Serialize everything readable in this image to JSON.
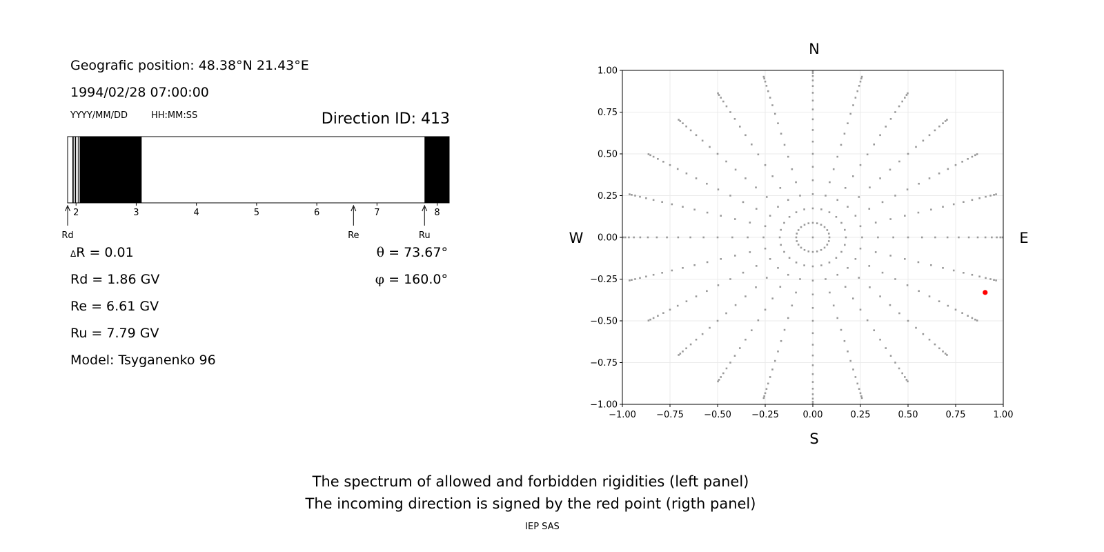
{
  "left_panel": {
    "position": "Geografic position: 48.38°N 21.43°E",
    "datetime": "1994/02/28 07:00:00",
    "date_format": "YYYY/MM/DD",
    "time_format": "HH:MM:SS",
    "direction_id": "Direction ID: 413",
    "delta_r_symbol": "Δ",
    "delta_r": "R = 0.01",
    "rd": "Rd = 1.86 GV",
    "re": "Re = 6.61 GV",
    "ru": "Ru = 7.79 GV",
    "model": "Model: Tsyganenko 96",
    "theta_symbol": "θ",
    "theta": " = 73.67°",
    "phi_symbol": "φ",
    "phi": " = 160.0°",
    "markers": [
      {
        "label": "Rd",
        "value": 1.86
      },
      {
        "label": "Re",
        "value": 6.61
      },
      {
        "label": "Ru",
        "value": 7.79
      }
    ]
  },
  "chart_data": [
    {
      "type": "bar",
      "description_of_content": "rigidity spectrum strip",
      "xlim": [
        1.86,
        8.2
      ],
      "ticks": [
        2,
        3,
        4,
        5,
        6,
        7,
        8
      ],
      "forbidden_intervals": [
        [
          1.94,
          1.96
        ],
        [
          1.98,
          2.0
        ],
        [
          2.03,
          2.04
        ],
        [
          2.06,
          3.09
        ],
        [
          7.79,
          8.2
        ]
      ],
      "allowed_color": "#ffffff",
      "forbidden_color": "#000000"
    },
    {
      "type": "scatter",
      "xlim": [
        -1.0,
        1.0
      ],
      "ylim": [
        -1.0,
        1.0
      ],
      "xticks": [
        "−1.00",
        "−0.75",
        "−0.50",
        "−0.25",
        "0.00",
        "0.25",
        "0.50",
        "0.75",
        "1.00"
      ],
      "yticks": [
        "1.00",
        "0.75",
        "0.50",
        "0.25",
        "0.00",
        "−0.25",
        "−0.50",
        "−0.75",
        "−1.00"
      ],
      "grid": true,
      "compass": {
        "north": "N",
        "south": "S",
        "west": "W",
        "east": "E"
      },
      "grid_points": {
        "azimuth_step_deg": 15,
        "zenith_step_deg": 5,
        "zenith_max_deg": 85,
        "projection": "sin(zenith)",
        "color": "#999999"
      },
      "highlight_point": {
        "x": 0.905,
        "y": -0.33,
        "color": "#ff0000"
      }
    }
  ],
  "caption": {
    "line1": "The spectrum of allowed and forbidden rigidities (left panel)",
    "line2": "The incoming direction is signed by the red point (rigth panel)",
    "credit": "IEP SAS"
  }
}
